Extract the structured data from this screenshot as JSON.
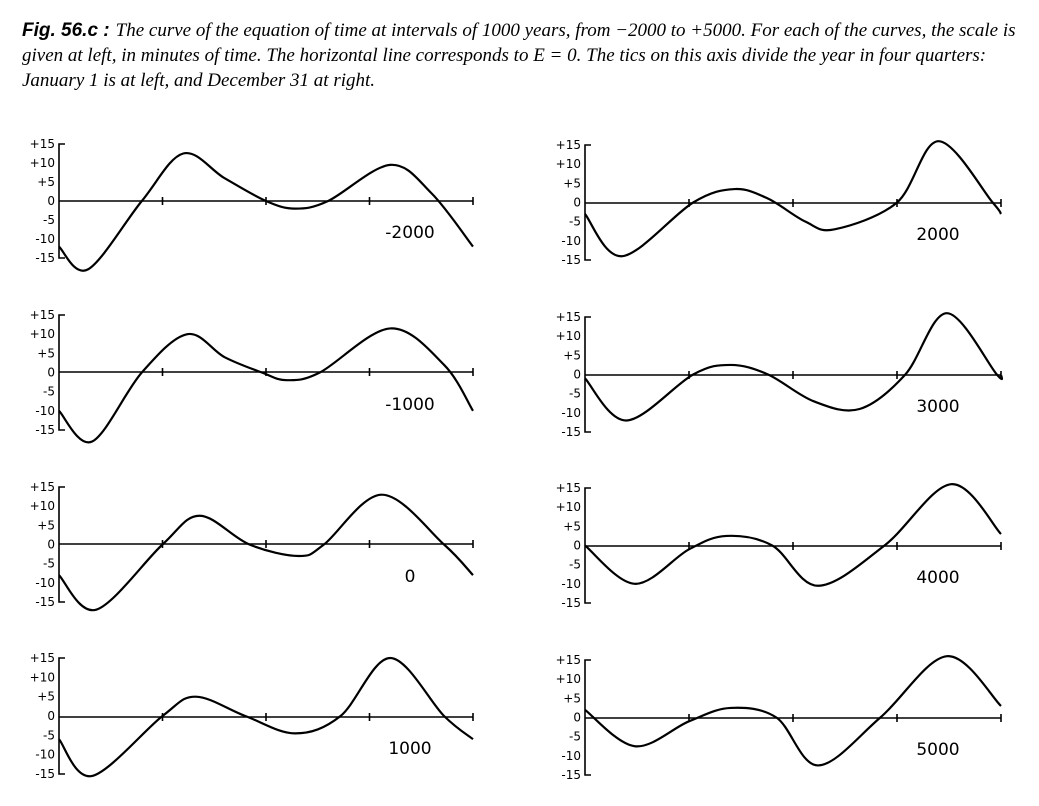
{
  "caption": {
    "lead": "Fig. 56.c :",
    "text": "The curve of the equation of time at intervals of 1000 years, from −2000 to +5000. For each of the curves, the scale is given at left, in minutes of time. The horizontal line corresponds to E = 0. The tics on this axis divide the year in four quarters: January 1 is at left, and December 31 at right."
  },
  "chart_data": [
    {
      "type": "line",
      "title": "",
      "label": "-2000",
      "ylim": [
        -15,
        15
      ],
      "xlim": [
        0,
        1
      ],
      "yticks": [
        "+15",
        "+10",
        "+5",
        "0",
        "-5",
        "-10",
        "-15"
      ],
      "x": [
        0,
        0.07,
        0.2,
        0.3,
        0.4,
        0.5,
        0.57,
        0.65,
        0.8,
        0.9,
        1
      ],
      "values": [
        -12,
        -18,
        0,
        12.5,
        6,
        0,
        -2,
        0,
        9.5,
        2,
        -12
      ]
    },
    {
      "type": "line",
      "title": "",
      "label": "-1000",
      "ylim": [
        -15,
        15
      ],
      "xlim": [
        0,
        1
      ],
      "yticks": [
        "+15",
        "+10",
        "+5",
        "0",
        "-5",
        "-10",
        "-15"
      ],
      "x": [
        0,
        0.08,
        0.2,
        0.31,
        0.4,
        0.49,
        0.55,
        0.63,
        0.8,
        0.93,
        1
      ],
      "values": [
        -10,
        -18,
        0,
        10,
        4,
        0,
        -2,
        0,
        11.5,
        2,
        -10
      ]
    },
    {
      "type": "line",
      "title": "",
      "label": "0",
      "ylim": [
        -15,
        15
      ],
      "xlim": [
        0,
        1
      ],
      "yticks": [
        "+15",
        "+10",
        "+5",
        "0",
        "-5",
        "-10",
        "-15"
      ],
      "x": [
        0,
        0.09,
        0.25,
        0.34,
        0.46,
        0.58,
        0.64,
        0.78,
        0.93,
        1
      ],
      "values": [
        -8,
        -17,
        0,
        7.5,
        0,
        -3,
        0,
        13,
        0,
        -8
      ]
    },
    {
      "type": "line",
      "title": "",
      "label": "1000",
      "ylim": [
        -15,
        15
      ],
      "xlim": [
        0,
        1
      ],
      "yticks": [
        "+15",
        "+10",
        "+5",
        "0",
        "-5",
        "-10",
        "-15"
      ],
      "x": [
        0,
        0.08,
        0.25,
        0.33,
        0.45,
        0.57,
        0.68,
        0.8,
        0.93,
        1
      ],
      "values": [
        -6,
        -15.5,
        0,
        5,
        0,
        -4.5,
        0,
        15,
        0,
        -6
      ]
    },
    {
      "type": "line",
      "title": "",
      "label": "2000",
      "ylim": [
        -15,
        15
      ],
      "xlim": [
        0,
        1
      ],
      "yticks": [
        "+15",
        "+10",
        "+5",
        "0",
        "-5",
        "-10",
        "-15"
      ],
      "x": [
        0,
        0.09,
        0.26,
        0.36,
        0.44,
        0.53,
        0.6,
        0.75,
        0.85,
        0.98,
        1
      ],
      "values": [
        -3,
        -14,
        0,
        3.5,
        1,
        -5,
        -7,
        0,
        16,
        0,
        -3
      ]
    },
    {
      "type": "line",
      "title": "",
      "label": "3000",
      "ylim": [
        -15,
        15
      ],
      "xlim": [
        0,
        1
      ],
      "yticks": [
        "+15",
        "+10",
        "+5",
        "0",
        "-5",
        "-10",
        "-15"
      ],
      "x": [
        0,
        0.1,
        0.26,
        0.35,
        0.44,
        0.55,
        0.66,
        0.77,
        0.87,
        0.99,
        1
      ],
      "values": [
        -1,
        -12,
        0,
        2.5,
        0,
        -7,
        -9,
        0,
        16,
        0,
        0
      ]
    },
    {
      "type": "line",
      "title": "",
      "label": "4000",
      "ylim": [
        -15,
        15
      ],
      "xlim": [
        0,
        1
      ],
      "yticks": [
        "+15",
        "+10",
        "+5",
        "0",
        "-5",
        "-10",
        "-15"
      ],
      "x": [
        0,
        0.12,
        0.25,
        0.34,
        0.45,
        0.56,
        0.72,
        0.88,
        1
      ],
      "values": [
        0,
        -10,
        -1,
        2.5,
        0,
        -10.5,
        0,
        16,
        3
      ]
    },
    {
      "type": "line",
      "title": "",
      "label": "5000",
      "ylim": [
        -15,
        15
      ],
      "xlim": [
        0,
        1
      ],
      "yticks": [
        "+15",
        "+10",
        "+5",
        "0",
        "-5",
        "-10",
        "-15"
      ],
      "x": [
        0,
        0.12,
        0.25,
        0.35,
        0.46,
        0.56,
        0.71,
        0.87,
        1
      ],
      "values": [
        2,
        -7.5,
        -1,
        2.5,
        0,
        -12.5,
        0,
        16,
        3
      ]
    }
  ]
}
